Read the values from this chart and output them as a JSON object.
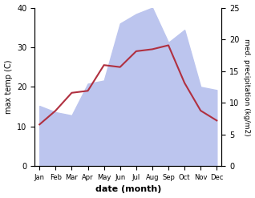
{
  "months": [
    "Jan",
    "Feb",
    "Mar",
    "Apr",
    "May",
    "Jun",
    "Jul",
    "Aug",
    "Sep",
    "Oct",
    "Nov",
    "Dec"
  ],
  "temp": [
    10.5,
    14.0,
    18.5,
    19.0,
    25.5,
    25.0,
    29.0,
    29.5,
    30.5,
    21.0,
    14.0,
    11.5
  ],
  "precip": [
    9.5,
    8.5,
    8.0,
    13.0,
    13.5,
    22.5,
    24.0,
    25.0,
    19.5,
    21.5,
    12.5,
    12.0
  ],
  "temp_color": "#b03040",
  "precip_fill_color": "#bcc5ee",
  "temp_ylim": [
    0,
    40
  ],
  "precip_ylim": [
    0,
    25
  ],
  "precip_scale": 1.6,
  "xlabel": "date (month)",
  "ylabel_left": "max temp (C)",
  "ylabel_right": "med. precipitation (kg/m2)",
  "background_color": "#ffffff"
}
